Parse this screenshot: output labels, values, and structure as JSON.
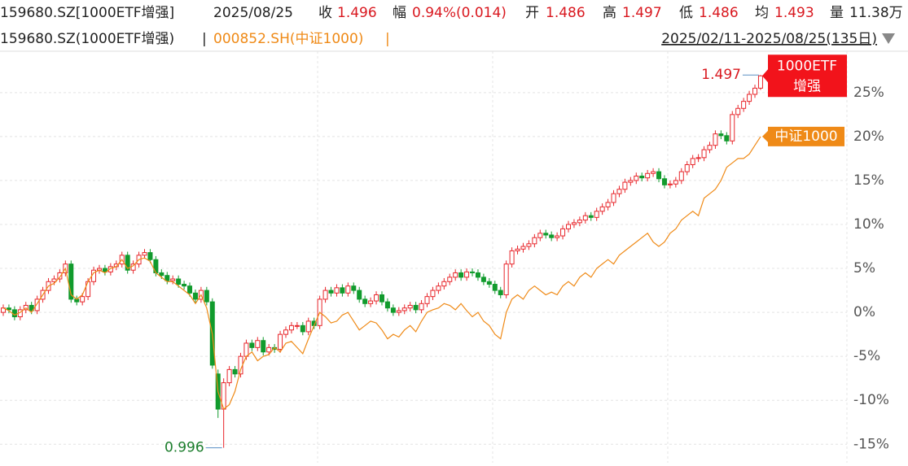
{
  "header": {
    "code": "159680.SZ[1000ETF增强]",
    "date": "2025/08/25",
    "fields": [
      {
        "label": "收",
        "value": "1.496"
      },
      {
        "label": "幅",
        "value": "0.94%(0.014)"
      },
      {
        "label": "开",
        "value": "1.486"
      },
      {
        "label": "高",
        "value": "1.497"
      },
      {
        "label": "低",
        "value": "1.486"
      },
      {
        "label": "均",
        "value": "1.493"
      },
      {
        "label": "量",
        "value": "11.38万"
      }
    ],
    "legend": {
      "main": "159680.SZ(1000ETF增强)",
      "separator": "|",
      "index": "000852.SH(中证1000)",
      "index_separator": "|"
    },
    "range": "2025/02/11-2025/08/25(135日)"
  },
  "chart_data": {
    "type": "candlestick",
    "ylim": [
      -17.1,
      29.7
    ],
    "yticks": [
      {
        "value": -15,
        "label": "-15%"
      },
      {
        "value": -10,
        "label": "-10%"
      },
      {
        "value": -5,
        "label": "-5%"
      },
      {
        "value": 0,
        "label": "0%"
      },
      {
        "value": 5,
        "label": "5%"
      },
      {
        "value": 10,
        "label": "10%"
      },
      {
        "value": 15,
        "label": "15%"
      },
      {
        "value": 20,
        "label": "20%"
      },
      {
        "value": 25,
        "label": "25%"
      }
    ],
    "grid": true,
    "annotations": {
      "max_label": "1.497",
      "min_label": "0.996"
    },
    "candles": {
      "name_lines": [
        "1000ETF",
        "增强"
      ],
      "color_up": "#e8262b",
      "color_down": "#119b2d",
      "open": [
        0,
        0.5,
        0.3,
        -0.5,
        0.3,
        0.8,
        0.2,
        1.5,
        2.5,
        3.5,
        3.8,
        4.5,
        5.5,
        1.5,
        1.2,
        1.8,
        3.5,
        4.8,
        5,
        4.6,
        5.2,
        5.5,
        6.5,
        4.8,
        5.5,
        6.5,
        6.8,
        6,
        4.5,
        4.2,
        3.6,
        3.8,
        3.2,
        3,
        2.2,
        1.5,
        2.5,
        1.2,
        -7,
        -11,
        -8,
        -6.5,
        -7,
        -5,
        -3.5,
        -4,
        -3.2,
        -4.5,
        -4,
        -4.2,
        -2.5,
        -2,
        -1.5,
        -1.5,
        -2.2,
        -1,
        -1.5,
        1.5,
        2.5,
        2.2,
        2.8,
        2.2,
        3,
        2.5,
        1.5,
        1,
        1.3,
        2,
        1.2,
        0.5,
        0,
        0.2,
        0.5,
        0.8,
        0.3,
        1,
        1.8,
        2.5,
        3,
        3.5,
        4,
        4.5,
        4,
        4.6,
        4.5,
        4,
        3.5,
        3.2,
        2.5,
        2,
        5.5,
        7,
        7.2,
        7.5,
        7.8,
        8.5,
        9,
        8.8,
        8.5,
        8.7,
        9.5,
        10,
        10.2,
        10.5,
        11,
        10.8,
        11.5,
        12,
        12.5,
        13.5,
        14,
        14.8,
        15,
        15.5,
        15.3,
        15.8,
        16,
        15.2,
        14.5,
        14.6,
        15,
        16,
        16.8,
        17.5,
        17.6,
        18.5,
        19,
        20.3,
        20.1,
        19.5,
        22.5,
        23.2,
        24,
        24.8,
        25.5
      ],
      "high": [
        0.9,
        0.9,
        0.7,
        0.7,
        1.2,
        1.2,
        1.9,
        2.9,
        3.9,
        4.2,
        4.9,
        5.9,
        5.9,
        1.9,
        2.2,
        3.9,
        5.2,
        5.4,
        5.4,
        5.6,
        5.9,
        6.9,
        6.9,
        5.9,
        6.9,
        7.2,
        7.2,
        6.4,
        4.9,
        4.6,
        4.2,
        4.2,
        3.6,
        3.4,
        2.6,
        2.9,
        2.9,
        1.6,
        -6.5,
        -7.5,
        -6.1,
        -6.1,
        -4.6,
        -3.1,
        -3.1,
        -2.8,
        -2.8,
        -3.6,
        -3.6,
        -2.1,
        -1.6,
        -1.1,
        -1.1,
        -1.1,
        -0.6,
        -0.6,
        1.9,
        2.9,
        2.9,
        3.2,
        3.2,
        3.4,
        3.4,
        2.9,
        1.9,
        1.7,
        2.4,
        2.4,
        1.6,
        0.9,
        0.6,
        0.9,
        1.2,
        1.2,
        1.4,
        2.2,
        2.9,
        3.4,
        3.9,
        4.4,
        4.9,
        4.9,
        5,
        5,
        4.9,
        4.4,
        3.9,
        3.6,
        2.9,
        5.9,
        7.4,
        7.6,
        7.9,
        8.2,
        8.9,
        9.4,
        9.4,
        9.2,
        9.1,
        9.9,
        10.4,
        10.6,
        10.9,
        11.4,
        11.4,
        11.9,
        12.4,
        12.9,
        13.9,
        14.4,
        15.2,
        15.4,
        15.9,
        15.9,
        16.2,
        16.4,
        16.4,
        15.6,
        15,
        15.4,
        16.4,
        17.2,
        17.9,
        18,
        18.9,
        19.4,
        20.7,
        20.7,
        20.5,
        22.9,
        23.6,
        24.4,
        25.2,
        25.9,
        27
      ],
      "low": [
        -0.4,
        -0.1,
        -0.9,
        -0.9,
        -0.1,
        -0.2,
        -0.2,
        1.1,
        2.1,
        3.1,
        3.4,
        4.1,
        1.1,
        0.8,
        0.8,
        1.4,
        3.1,
        4.4,
        4.2,
        4.2,
        4.8,
        5.1,
        4.4,
        4.4,
        5.1,
        6.1,
        5.6,
        4.1,
        3.8,
        3.2,
        3.2,
        2.8,
        2.6,
        1.8,
        1.1,
        1.1,
        0.8,
        -6.4,
        -12,
        -15.4,
        -8.4,
        -7.4,
        -7.4,
        -5.4,
        -4.4,
        -4.4,
        -4.9,
        -4.9,
        -4.6,
        -4.6,
        -2.9,
        -2.4,
        -1.9,
        -2.6,
        -2.6,
        -1.9,
        -1.9,
        1.1,
        1.8,
        1.8,
        1.8,
        1.8,
        2.1,
        1.1,
        0.6,
        0.6,
        0.9,
        0.8,
        0.1,
        -0.4,
        -0.4,
        -0.2,
        0.1,
        -0.1,
        -0.1,
        0.6,
        1.4,
        2.1,
        2.6,
        3.1,
        3.6,
        3.6,
        3.6,
        4.1,
        3.6,
        3.1,
        2.8,
        2.1,
        1.6,
        1.6,
        5.1,
        6.6,
        6.8,
        7.1,
        7.4,
        8.1,
        8.4,
        8.1,
        8.1,
        8.3,
        9.1,
        9.6,
        9.8,
        10.1,
        10.4,
        10.4,
        11.1,
        11.6,
        12.1,
        13.1,
        13.6,
        14.4,
        14.6,
        14.9,
        14.9,
        15.4,
        14.8,
        14.1,
        14.1,
        14.2,
        14.6,
        15.6,
        16.4,
        17.1,
        17.2,
        18.1,
        18.6,
        19.7,
        19.1,
        19.1,
        22.1,
        22.8,
        23.6,
        24.4,
        25.3
      ],
      "close": [
        0.5,
        0.3,
        -0.5,
        0.3,
        0.8,
        0.2,
        1.5,
        2.5,
        3.5,
        3.8,
        4.5,
        5.5,
        1.5,
        1.2,
        1.8,
        3.5,
        4.8,
        5,
        4.6,
        5.2,
        5.5,
        6.5,
        4.8,
        5.5,
        6.5,
        6.8,
        6,
        4.5,
        4.2,
        3.6,
        3.8,
        3.2,
        3,
        2.2,
        1.5,
        2.5,
        1.2,
        -6,
        -11,
        -8,
        -6.5,
        -7,
        -5,
        -3.5,
        -4,
        -3.2,
        -4.5,
        -4,
        -4.2,
        -2.5,
        -2,
        -1.5,
        -1.5,
        -2.2,
        -1,
        -1.5,
        1.5,
        2.5,
        2.2,
        2.8,
        2.2,
        3,
        2.5,
        1.5,
        1,
        1.3,
        2,
        1.2,
        0.5,
        0,
        0.2,
        0.5,
        0.8,
        0.3,
        1,
        1.8,
        2.5,
        3,
        3.5,
        4,
        4.5,
        4,
        4.6,
        4.5,
        4,
        3.5,
        3.2,
        2.5,
        2,
        5.5,
        7,
        7.2,
        7.5,
        7.8,
        8.5,
        9,
        8.8,
        8.5,
        8.7,
        9.5,
        10,
        10.2,
        10.5,
        11,
        10.8,
        11.5,
        12,
        12.5,
        13.5,
        14,
        14.8,
        15,
        15.5,
        15.3,
        15.8,
        16,
        15.2,
        14.5,
        14.6,
        15,
        16,
        16.8,
        17.5,
        17.6,
        18.5,
        19,
        20.3,
        20.1,
        19.5,
        22.5,
        23.2,
        24,
        24.8,
        25.5,
        26.9
      ]
    },
    "line": {
      "name": "中证1000",
      "color": "#ef8a17",
      "values": [
        0.5,
        0.2,
        -0.3,
        0,
        0.5,
        0,
        1,
        2,
        3,
        3.3,
        4,
        5,
        2,
        1.5,
        2,
        3.5,
        4.5,
        4.8,
        4.5,
        5,
        5.2,
        6,
        5,
        5.3,
        6,
        6.2,
        5.8,
        4.5,
        4,
        3.5,
        3.5,
        3,
        2.5,
        2,
        1,
        2,
        0.5,
        -2.5,
        -9,
        -11,
        -10.5,
        -9,
        -6.5,
        -5,
        -4.5,
        -5.5,
        -5,
        -4.8,
        -4,
        -4.5,
        -3.5,
        -3.3,
        -4,
        -4.7,
        -3,
        -1.5,
        0,
        -0.5,
        -1.2,
        -1,
        -0.3,
        0,
        -1,
        -2,
        -1.5,
        -1,
        -1.2,
        -2,
        -3,
        -2.5,
        -2.8,
        -2,
        -1.5,
        -2.2,
        -1,
        0,
        0.3,
        0.5,
        1,
        0.8,
        0.3,
        1,
        0.2,
        -0.5,
        0,
        -1,
        -1.5,
        -2.5,
        -3,
        0,
        1.5,
        2,
        1.5,
        2.5,
        3,
        2.5,
        2,
        2.3,
        2,
        3,
        3.5,
        3,
        4,
        4.5,
        4,
        5,
        5.5,
        6,
        5.5,
        6.5,
        7,
        7.5,
        8,
        8.5,
        9,
        8,
        7.5,
        8,
        9,
        9.5,
        10.5,
        11,
        11.5,
        11,
        13,
        13.5,
        14,
        15,
        16.5,
        17,
        17.5,
        17.5,
        18,
        19,
        20
      ]
    }
  }
}
